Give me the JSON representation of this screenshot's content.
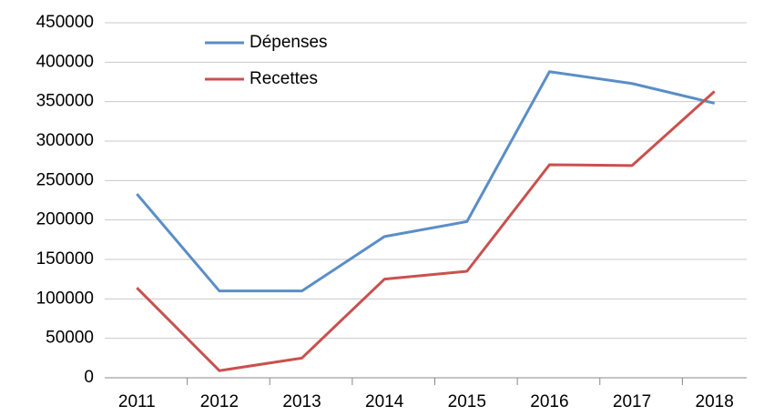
{
  "chart_data": {
    "type": "line",
    "categories": [
      "2011",
      "2012",
      "2013",
      "2014",
      "2015",
      "2016",
      "2017",
      "2018"
    ],
    "series": [
      {
        "name": "Dépenses",
        "color": "#5a8ec6",
        "values": [
          233000,
          110000,
          110000,
          179000,
          198000,
          388000,
          373000,
          348000
        ]
      },
      {
        "name": "Recettes",
        "color": "#c9514e",
        "values": [
          114000,
          9000,
          25000,
          125000,
          135000,
          270000,
          269000,
          363000
        ]
      }
    ],
    "ylim": [
      0,
      450000
    ],
    "yticks": [
      0,
      50000,
      100000,
      150000,
      200000,
      250000,
      300000,
      350000,
      400000,
      450000
    ],
    "grid": true,
    "legend": "top-left"
  }
}
